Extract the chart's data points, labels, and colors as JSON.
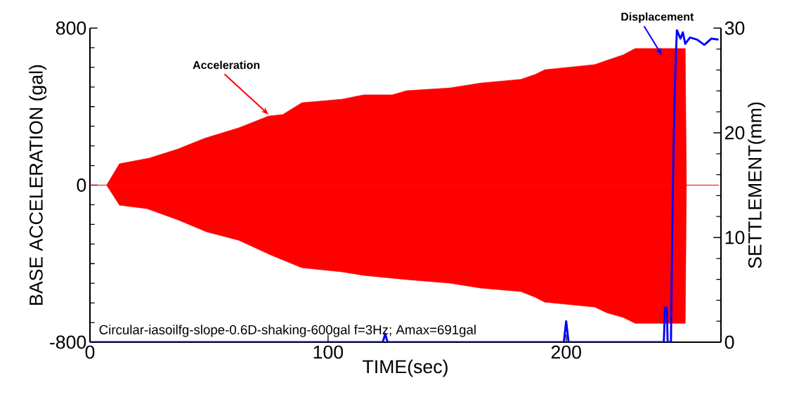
{
  "chart_data": {
    "type": "area",
    "xlabel": "TIME(sec)",
    "ylabel": "BASE ACCELERATION (gal)",
    "y2label": "SETTLEMENT(mm)",
    "xlim": [
      0,
      265
    ],
    "ylim": [
      -800,
      800
    ],
    "y2lim": [
      0,
      30
    ],
    "xticks": [
      0,
      100,
      200
    ],
    "yticks": [
      -800,
      0,
      800
    ],
    "y2ticks": [
      0,
      10,
      20,
      30
    ],
    "series": [
      {
        "color": "#ff0000",
        "x": [
          0,
          7,
          12.4,
          25,
          37,
          48,
          62.5,
          75,
          81,
          89,
          106,
          115,
          127,
          133,
          151,
          164,
          181,
          187,
          191,
          212,
          217,
          224,
          229,
          250,
          250.5,
          264
        ],
        "values": [
          0,
          0,
          109,
          138,
          184,
          238,
          292,
          352,
          360,
          420,
          438,
          460,
          460,
          481,
          495,
          520,
          539,
          564,
          588,
          614,
          635,
          664,
          696,
          696,
          0,
          0
        ]
      },
      {
        "color": "#ff0000",
        "x": [
          0,
          7,
          12.4,
          24,
          37,
          49,
          62.5,
          76,
          89,
          106,
          115,
          133,
          151,
          164,
          181,
          187,
          191,
          212,
          217,
          224,
          229,
          250,
          250.5,
          264
        ],
        "values": [
          0,
          0,
          -102,
          -120,
          -177,
          -238,
          -281,
          -356,
          -421,
          -442,
          -460,
          -481,
          -499,
          -524,
          -542,
          -571,
          -596,
          -621,
          -650,
          -674,
          -704,
          -704,
          0,
          0
        ]
      },
      {
        "type": "line",
        "axis": "y2",
        "color": "#0000ff",
        "x": [
          0,
          123,
          124,
          125,
          199,
          200,
          201,
          241,
          241.5,
          242.3,
          242.6,
          244,
          244.5,
          245,
          245.5,
          246,
          246.5,
          248,
          249,
          250,
          252,
          255,
          258,
          261,
          264
        ],
        "values": [
          0,
          0,
          0.8,
          0,
          0,
          2,
          0,
          0,
          3.3,
          3.3,
          0,
          0,
          10,
          17,
          23,
          27,
          29.8,
          29,
          29.6,
          28.5,
          29.1,
          28.9,
          28.4,
          29,
          28.9
        ]
      }
    ],
    "annotations": [
      {
        "text": "Acceleration",
        "x": 75,
        "y": 360
      },
      "Displacement",
      "Circular-iasoilfg-slope-0.6D-shaking-600gal f=3Hz; Amax=691gal"
    ]
  }
}
